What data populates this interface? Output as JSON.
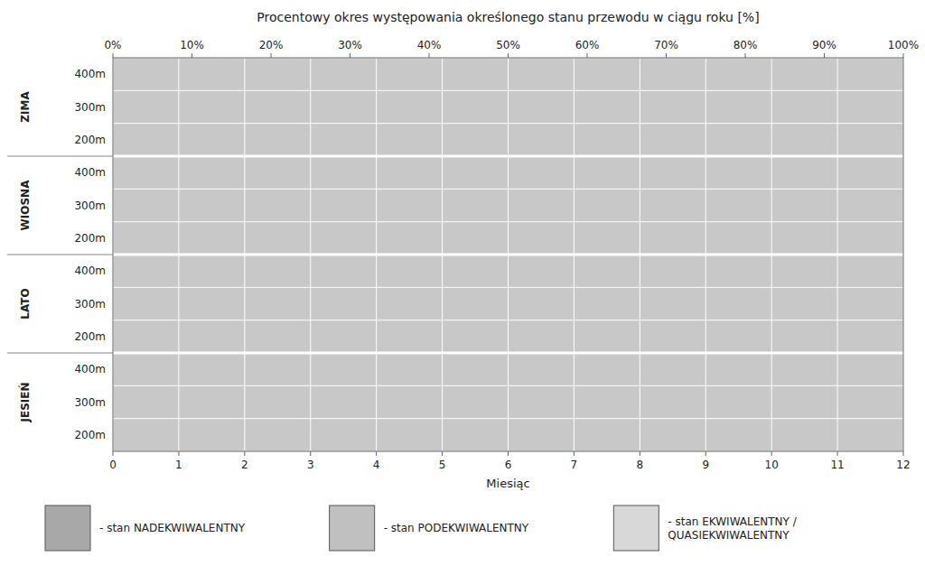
{
  "chart_data": {
    "type": "heatmap",
    "title": "Procentowy okres występowania określonego stanu przewodu w ciągu roku [%]",
    "x_label": "Miesiąc",
    "xlim": [
      0,
      12
    ],
    "xticks": [
      0,
      1,
      2,
      3,
      4,
      5,
      6,
      7,
      8,
      9,
      10,
      11,
      12
    ],
    "x2lim": [
      0,
      100
    ],
    "x2ticks": [
      {
        "value": 0,
        "label": "0%"
      },
      {
        "value": 10,
        "label": "10%"
      },
      {
        "value": 20,
        "label": "20%"
      },
      {
        "value": 30,
        "label": "30%"
      },
      {
        "value": 40,
        "label": "40%"
      },
      {
        "value": 50,
        "label": "50%"
      },
      {
        "value": 60,
        "label": "60%"
      },
      {
        "value": 70,
        "label": "70%"
      },
      {
        "value": 80,
        "label": "80%"
      },
      {
        "value": 90,
        "label": "90%"
      },
      {
        "value": 100,
        "label": "100%"
      }
    ],
    "groups": [
      "ZIMA",
      "WIOSNA",
      "LATO",
      "JESIEŃ"
    ],
    "categories": [
      "400m",
      "300m",
      "200m",
      "400m",
      "300m",
      "200m",
      "400m",
      "300m",
      "200m",
      "400m",
      "300m",
      "200m"
    ],
    "color": "#c8c8c8",
    "grid": true,
    "legend": "bottom",
    "series": [
      {
        "name": "- stan NADEKWIWALENTNY",
        "color": "#a8a8a8"
      },
      {
        "name": "- stan PODEKWIWALENTNY",
        "color": "#c0c0c0"
      },
      {
        "name": "- stan EKWIWALENTNY /\nQUASIEKWIWALENTNY",
        "color": "#d8d8d8"
      }
    ]
  }
}
